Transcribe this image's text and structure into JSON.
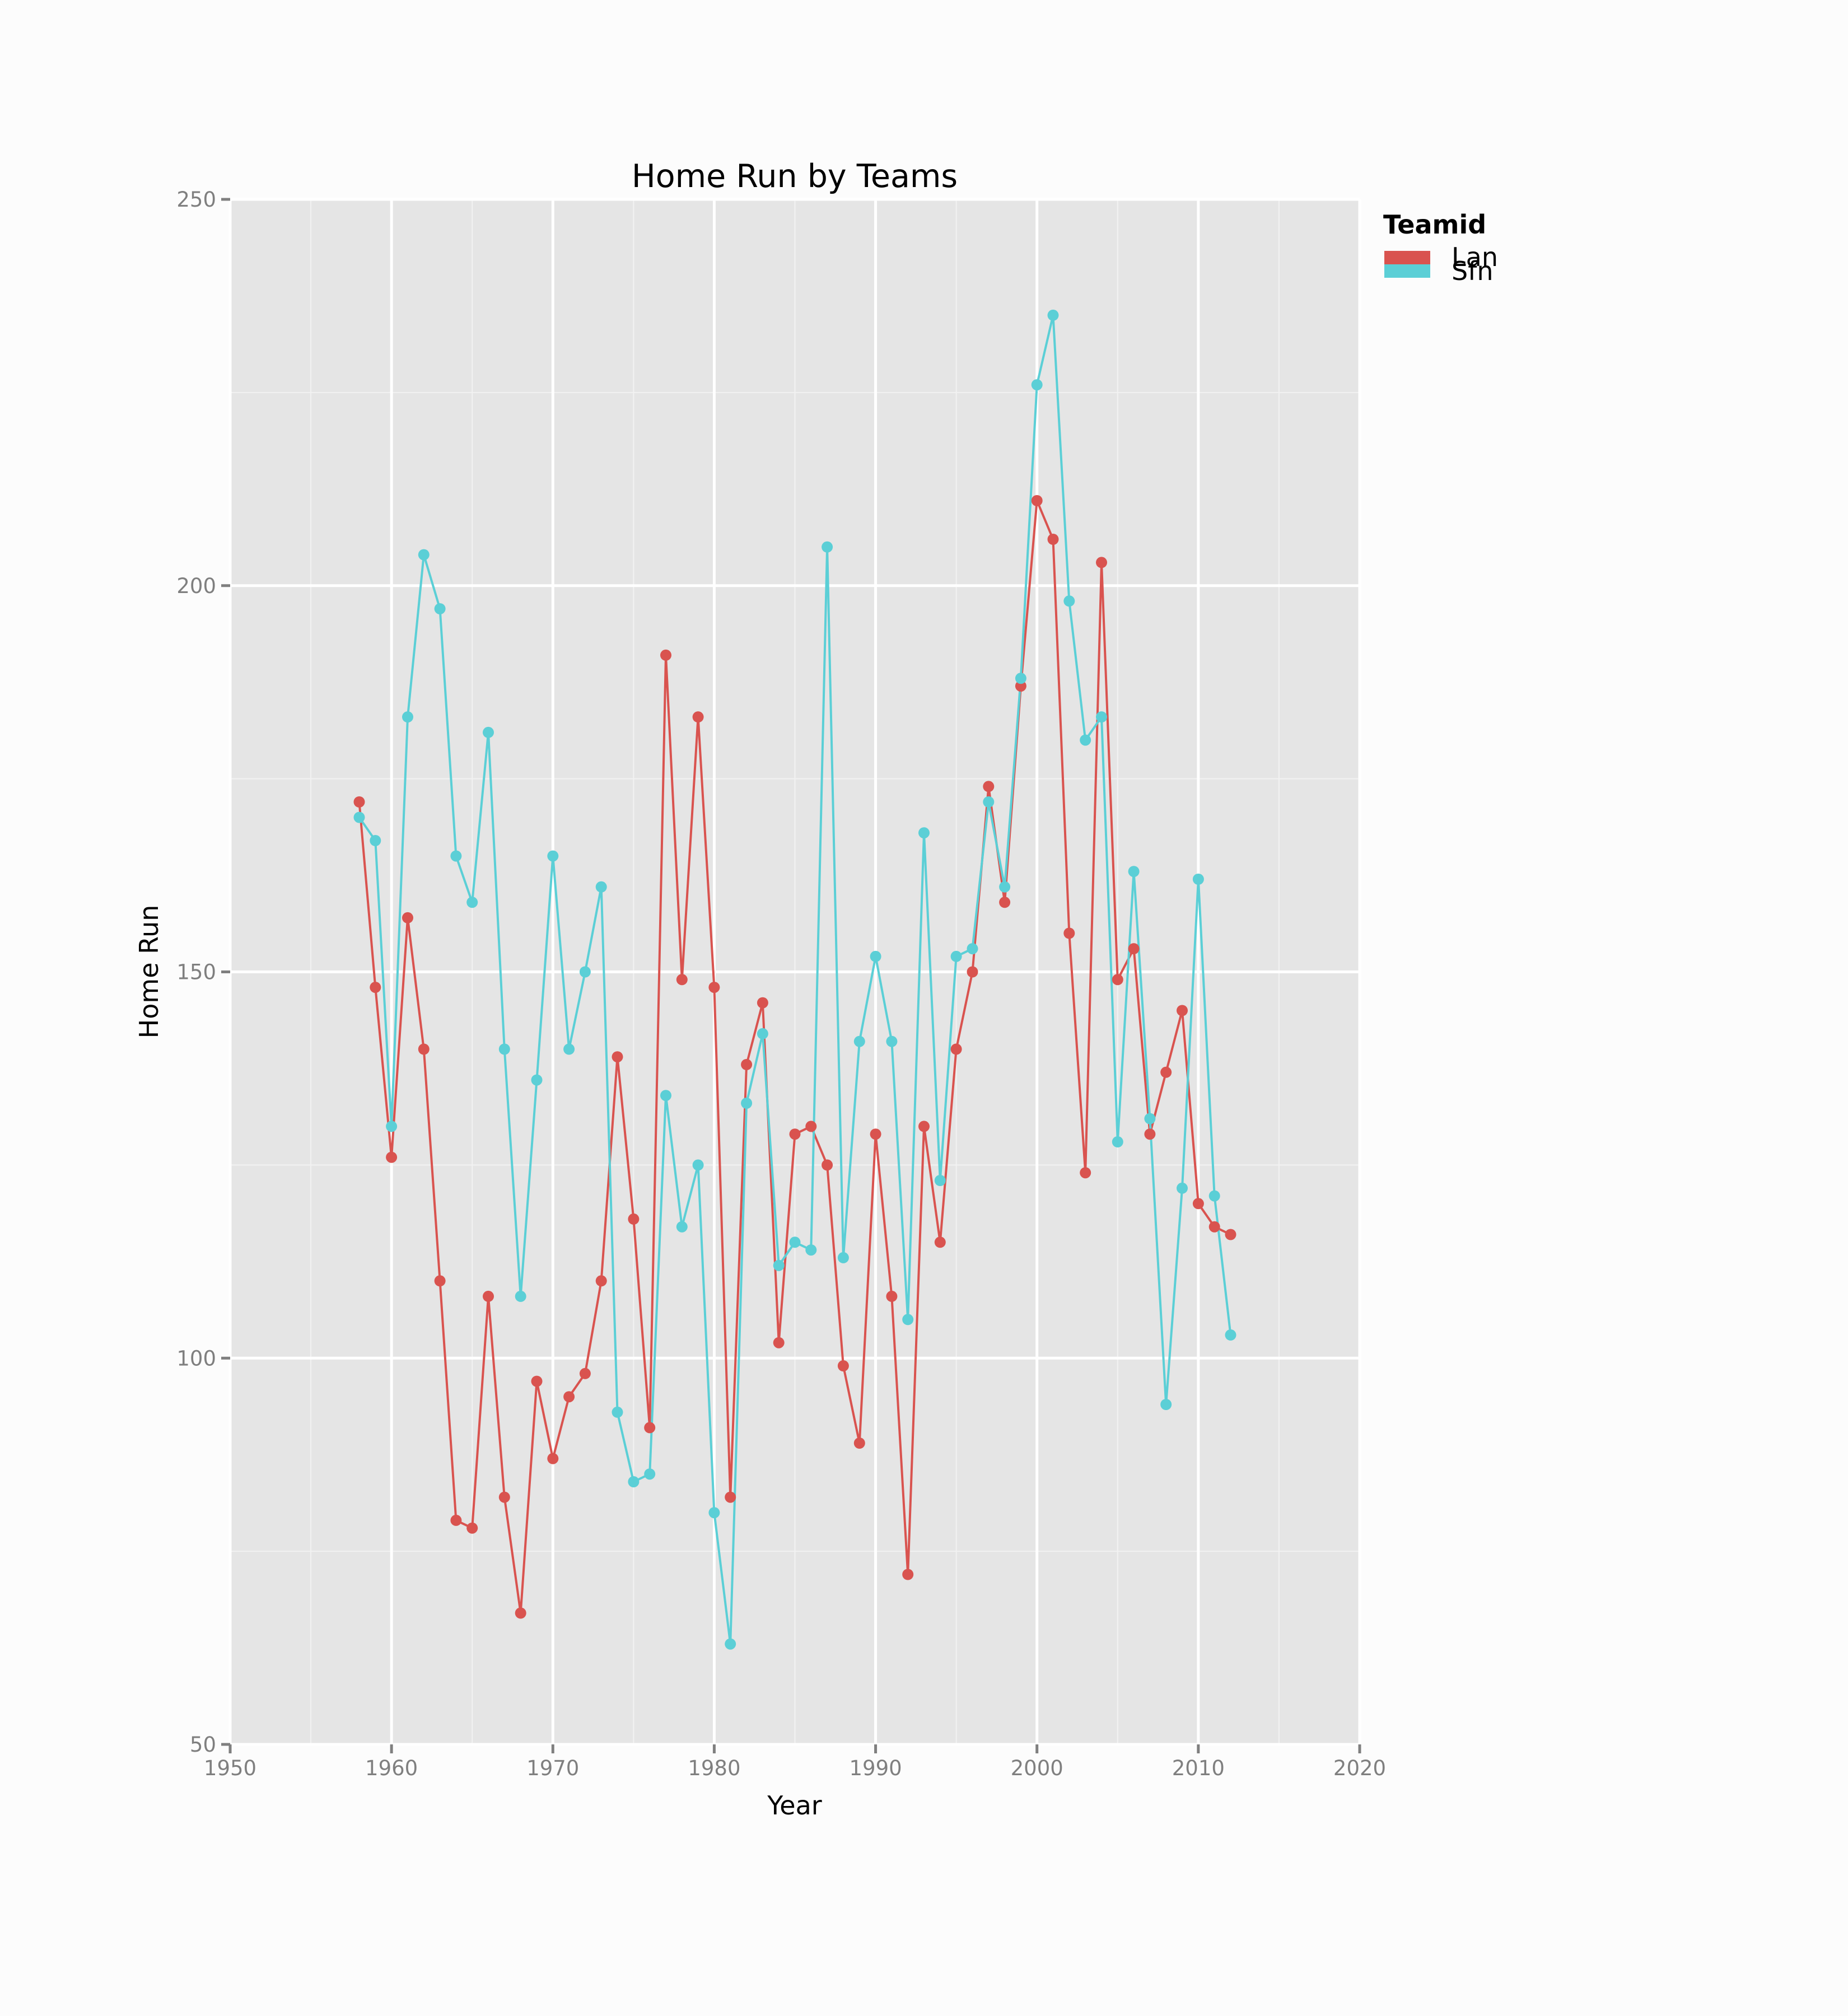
{
  "chart_data": {
    "type": "line",
    "title": "Home Run by Teams",
    "xlabel": "Year",
    "ylabel": "Home Run",
    "xlim": [
      1950,
      2020
    ],
    "ylim": [
      50,
      250
    ],
    "x_ticks": [
      1950,
      1960,
      1970,
      1980,
      1990,
      2000,
      2010,
      2020
    ],
    "y_ticks": [
      50,
      100,
      150,
      200,
      250
    ],
    "grid": true,
    "legend": {
      "title": "Teamid",
      "placement": "top-right"
    },
    "x": [
      1958,
      1959,
      1960,
      1961,
      1962,
      1963,
      1964,
      1965,
      1966,
      1967,
      1968,
      1969,
      1970,
      1971,
      1972,
      1973,
      1974,
      1975,
      1976,
      1977,
      1978,
      1979,
      1980,
      1981,
      1982,
      1983,
      1984,
      1985,
      1986,
      1987,
      1988,
      1989,
      1990,
      1991,
      1992,
      1993,
      1994,
      1995,
      1996,
      1997,
      1998,
      1999,
      2000,
      2001,
      2002,
      2003,
      2004,
      2005,
      2006,
      2007,
      2008,
      2009,
      2010,
      2011,
      2012
    ],
    "series": [
      {
        "name": "Lan",
        "color": "#d9534f",
        "values": [
          172,
          148,
          126,
          157,
          140,
          110,
          79,
          78,
          108,
          82,
          67,
          97,
          87,
          95,
          98,
          110,
          139,
          118,
          91,
          191,
          149,
          183,
          148,
          82,
          138,
          146,
          102,
          129,
          130,
          125,
          99,
          89,
          129,
          108,
          72,
          130,
          115,
          140,
          150,
          174,
          159,
          187,
          211,
          206,
          155,
          124,
          203,
          149,
          153,
          129,
          137,
          145,
          120,
          117,
          116
        ]
      },
      {
        "name": "Sfn",
        "color": "#5bcfd6",
        "values": [
          170,
          167,
          130,
          183,
          204,
          197,
          165,
          159,
          181,
          140,
          108,
          136,
          165,
          140,
          150,
          161,
          93,
          84,
          85,
          134,
          117,
          125,
          80,
          63,
          133,
          142,
          112,
          115,
          114,
          205,
          113,
          141,
          152,
          141,
          105,
          168,
          123,
          152,
          153,
          172,
          161,
          188,
          226,
          235,
          198,
          180,
          183,
          128,
          163,
          131,
          94,
          122,
          162,
          121,
          103
        ]
      }
    ]
  }
}
